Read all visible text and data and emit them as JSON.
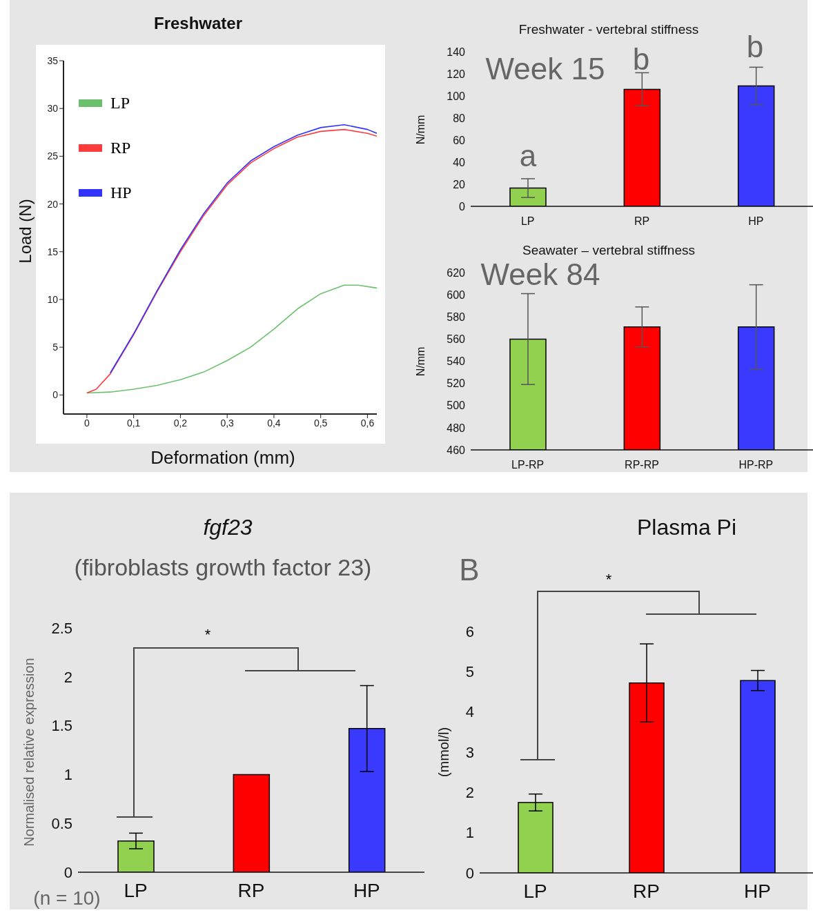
{
  "chart_data": [
    {
      "type": "line",
      "title": "Freshwater",
      "xlabel": "Deformation (mm)",
      "ylabel": "Load (N)",
      "xlim": [
        -0.05,
        0.62
      ],
      "ylim": [
        -2,
        35
      ],
      "xticks": [
        0,
        {
          "value": 0.1,
          "label": "0,1"
        },
        {
          "value": 0.2,
          "label": "0,2"
        },
        {
          "value": 0.3,
          "label": "0,3"
        },
        {
          "value": 0.4,
          "label": "0,4"
        },
        {
          "value": 0.5,
          "label": "0,5"
        },
        {
          "value": 0.6,
          "label": "0,6"
        }
      ],
      "yticks": [
        0,
        5,
        10,
        15,
        20,
        25,
        30,
        35
      ],
      "legend": "top left",
      "marker": "none",
      "series": [
        {
          "name": "LP",
          "color": "#6cc06c",
          "x": [
            0,
            0.05,
            0.1,
            0.15,
            0.2,
            0.25,
            0.3,
            0.35,
            0.4,
            0.45,
            0.5,
            0.55,
            0.58,
            0.62
          ],
          "values": [
            0.2,
            0.3,
            0.6,
            1.0,
            1.6,
            2.4,
            3.6,
            5.0,
            6.9,
            9.0,
            10.6,
            11.5,
            11.5,
            11.2
          ]
        },
        {
          "name": "RP",
          "color": "#ff3b3b",
          "x": [
            0,
            0.02,
            0.05,
            0.1,
            0.15,
            0.2,
            0.25,
            0.3,
            0.35,
            0.4,
            0.45,
            0.5,
            0.55,
            0.6,
            0.62
          ],
          "values": [
            0.2,
            0.6,
            2.2,
            6.3,
            10.8,
            15.0,
            18.8,
            22.0,
            24.3,
            25.8,
            27.0,
            27.6,
            27.8,
            27.4,
            27.1
          ]
        },
        {
          "name": "HP",
          "color": "#3333ff",
          "x": [
            0.05,
            0.1,
            0.15,
            0.2,
            0.25,
            0.3,
            0.35,
            0.4,
            0.45,
            0.5,
            0.55,
            0.6,
            0.62
          ],
          "values": [
            2.3,
            6.4,
            10.9,
            15.2,
            19.0,
            22.2,
            24.5,
            26.0,
            27.2,
            28.0,
            28.3,
            27.8,
            27.4
          ]
        }
      ]
    },
    {
      "type": "bar",
      "title": "Freshwater - vertebral stiffness",
      "ylabel": "N/mm",
      "categories": [
        "LP",
        "RP",
        "HP"
      ],
      "values": [
        16.5,
        106,
        109
      ],
      "errors": [
        8.5,
        15,
        17
      ],
      "colors": [
        "#92d050",
        "#ff0000",
        "#3a3aff"
      ],
      "ylim": [
        0,
        140
      ],
      "yticks": [
        0,
        20,
        40,
        60,
        80,
        100,
        120,
        140
      ],
      "annotations": [
        "Week 15",
        "a",
        "b",
        "b"
      ]
    },
    {
      "type": "bar",
      "title": "Seawater – vertebral stiffness",
      "ylabel": "N/mm",
      "categories": [
        "LP-RP",
        "RP-RP",
        "HP-RP"
      ],
      "values": [
        560,
        571,
        571
      ],
      "errors": [
        41,
        18,
        38
      ],
      "colors": [
        "#92d050",
        "#ff0000",
        "#3a3aff"
      ],
      "ylim": [
        460,
        620
      ],
      "yticks": [
        460,
        480,
        500,
        520,
        540,
        560,
        580,
        600,
        620
      ],
      "annotations": [
        "Week 84"
      ]
    },
    {
      "type": "bar",
      "title": "fgf23",
      "subtitle": "(fibroblasts growth factor 23)",
      "ylabel": "Normalised relative expression",
      "categories": [
        "LP",
        "RP",
        "HP"
      ],
      "values": [
        0.32,
        1.0,
        1.47
      ],
      "errors": [
        0.08,
        null,
        0.44
      ],
      "colors": [
        "#92d050",
        "#ff0000",
        "#3a3aff"
      ],
      "ylim": [
        0,
        2.5
      ],
      "yticks": [
        0,
        0.5,
        1,
        1.5,
        2,
        2.5
      ],
      "annotations": [
        "*",
        "(n = 10)"
      ]
    },
    {
      "type": "bar",
      "title": "Plasma Pi",
      "ylabel": "(mmol/l)",
      "categories": [
        "LP",
        "RP",
        "HP"
      ],
      "values": [
        1.75,
        4.72,
        4.78
      ],
      "errors": [
        0.21,
        0.97,
        0.25
      ],
      "colors": [
        "#92d050",
        "#ff0000",
        "#3a3aff"
      ],
      "ylim": [
        0,
        6
      ],
      "yticks": [
        0,
        1,
        2,
        3,
        4,
        5,
        6
      ],
      "annotations": [
        "B",
        "*"
      ]
    }
  ]
}
